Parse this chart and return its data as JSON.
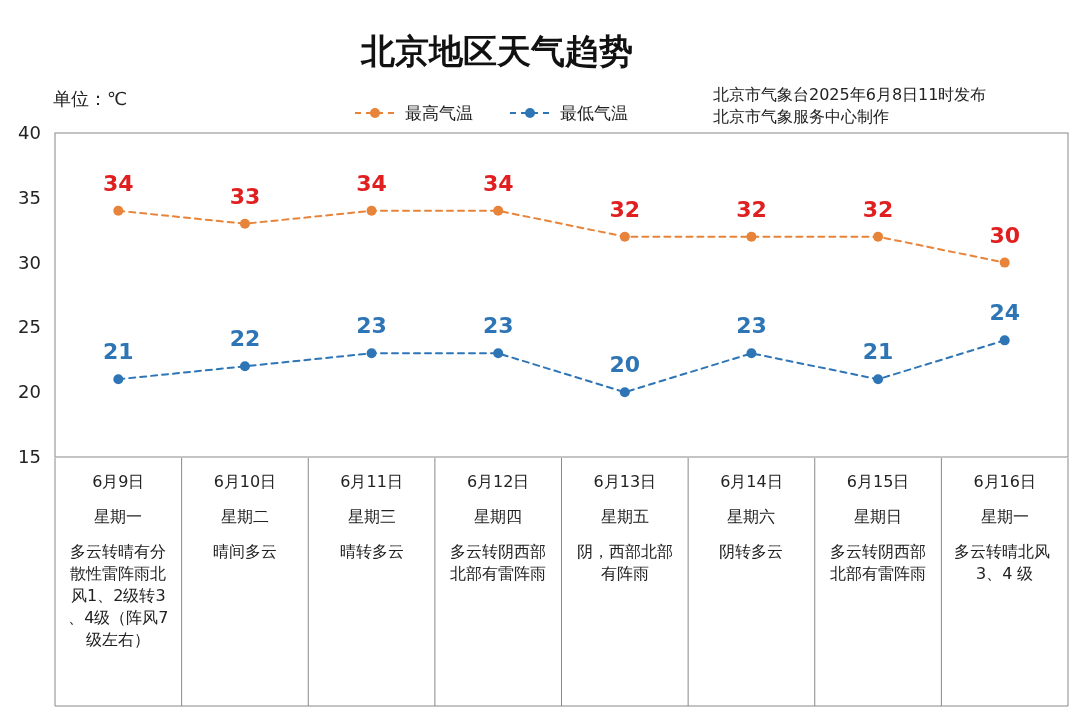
{
  "chart_data": {
    "type": "line",
    "title": "北京地区天气趋势",
    "subtitle": "北京市气象台2025年6月8日11时发布",
    "ylabel": "单位：℃",
    "categories": [
      "6月9日",
      "6月10日",
      "6月11日",
      "6月12日",
      "6月13日",
      "6月14日",
      "6月15日",
      "6月16日"
    ],
    "series": [
      {
        "name": "最高气温",
        "color": "#e8833a",
        "values": [
          34,
          33,
          34,
          34,
          32,
          32,
          32,
          30
        ]
      },
      {
        "name": "最低气温",
        "color": "#2e75b6",
        "values": [
          21,
          22,
          23,
          23,
          20,
          23,
          21,
          24
        ]
      }
    ],
    "ylim": [
      15,
      40
    ],
    "yticks": [
      15,
      20,
      25,
      30,
      35,
      40
    ],
    "grid": false,
    "legend": "top",
    "marker": "circle",
    "line_style": "dashed",
    "data_labels": true,
    "annotations": [
      "北京市气象服务中心制作",
      "星期一",
      "多云转晴有分散性雷阵雨北风1、2级转3、4级（阵风7级左右）",
      "星期二",
      "晴间多云",
      "星期三",
      "晴转多云",
      "星期四",
      "多云转阴西部北部有雷阵雨",
      "星期五",
      "阴，西部北部有阵雨",
      "星期六",
      "阴转多云",
      "星期日",
      "多云转阴西部北部有雷阵雨",
      "星期一",
      "多云转晴北风 3、4 级"
    ]
  }
}
